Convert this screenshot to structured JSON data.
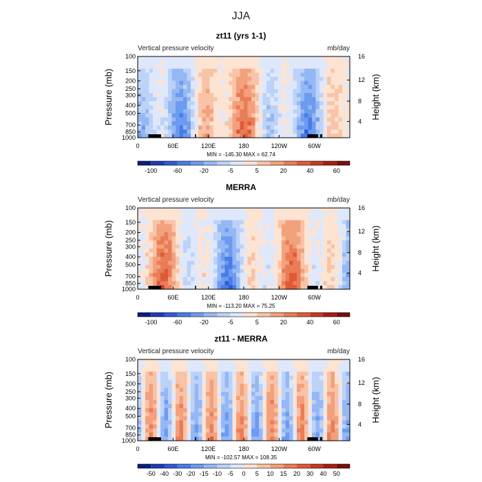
{
  "figure": {
    "title": "JJA",
    "panels": [
      {
        "title": "zt11 (yrs 1-1)",
        "left_label": "Vertical pressure velocity",
        "right_label": "mb/day",
        "stats": "MIN = -145.30   MAX =  62.74",
        "colorbar": "cb_full",
        "seed": 11
      },
      {
        "title": "MERRA",
        "left_label": "Vertical pressure velocity",
        "right_label": "mb/day",
        "stats": "MIN = -113.20   MAX =  75.25",
        "colorbar": "cb_full",
        "seed": 23
      },
      {
        "title": "zt11 - MERRA",
        "left_label": "Vertical pressure velocity",
        "right_label": "mb/day",
        "stats": "MIN = -102.57   MAX = 108.35",
        "colorbar": "cb_diff",
        "seed": 37
      }
    ],
    "ylabel_left": "Pressure (mb)",
    "ylabel_right": "Height (km)"
  },
  "colorbars": {
    "cb_full": {
      "colors": [
        "#0a1e82",
        "#1f3bb3",
        "#2f5ad6",
        "#4a7be8",
        "#6c9bf0",
        "#95b8f5",
        "#bcd2f8",
        "#dfe8fb",
        "#fde3d2",
        "#f8c3a6",
        "#f3a07c",
        "#ea7c57",
        "#de5a37",
        "#c9381f",
        "#a51f14",
        "#7a0e0c"
      ],
      "labels": [
        "-100",
        "-60",
        "-20",
        "-5",
        "5",
        "20",
        "40",
        "60"
      ]
    },
    "cb_diff": {
      "colors": [
        "#0a1e82",
        "#1f3bb3",
        "#2f5ad6",
        "#4a7be8",
        "#6c9bf0",
        "#95b8f5",
        "#bcd2f8",
        "#dfe8fb",
        "#fde3d2",
        "#f8c3a6",
        "#f3a07c",
        "#ea7c57",
        "#de5a37",
        "#c9381f",
        "#a51f14",
        "#7a0e0c"
      ],
      "labels": [
        "-50",
        "-40",
        "-30",
        "-20",
        "-15",
        "-10",
        "-5",
        "0",
        "5",
        "10",
        "15",
        "20",
        "30",
        "40",
        "50"
      ]
    }
  },
  "chart_data": [
    {
      "type": "heatmap",
      "title": "zt11 (yrs 1-1)",
      "xlabel": "",
      "ylabel": "Pressure (mb)",
      "x_ticks": [
        "0",
        "60E",
        "120E",
        "180",
        "120W",
        "60W"
      ],
      "y_ticks": [
        "100",
        "150",
        "200",
        "250",
        "300",
        "400",
        "500",
        "700",
        "850",
        "1000"
      ],
      "y2_ticks": [
        "16",
        "12",
        "8",
        "4"
      ],
      "y2label": "Height (km)",
      "units": "mb/day",
      "min": -145.3,
      "max": 62.74
    },
    {
      "type": "heatmap",
      "title": "MERRA",
      "xlabel": "",
      "ylabel": "Pressure (mb)",
      "x_ticks": [
        "0",
        "60E",
        "120E",
        "180",
        "120W",
        "60W"
      ],
      "y_ticks": [
        "100",
        "150",
        "200",
        "250",
        "300",
        "400",
        "500",
        "700",
        "850",
        "1000"
      ],
      "y2_ticks": [
        "16",
        "12",
        "8",
        "4"
      ],
      "y2label": "Height (km)",
      "units": "mb/day",
      "min": -113.2,
      "max": 75.25
    },
    {
      "type": "heatmap",
      "title": "zt11 - MERRA",
      "xlabel": "",
      "ylabel": "Pressure (mb)",
      "x_ticks": [
        "0",
        "60E",
        "120E",
        "180",
        "120W",
        "60W"
      ],
      "y_ticks": [
        "100",
        "150",
        "200",
        "250",
        "300",
        "400",
        "500",
        "700",
        "850",
        "1000"
      ],
      "y2_ticks": [
        "16",
        "12",
        "8",
        "4"
      ],
      "y2label": "Height (km)",
      "units": "mb/day",
      "min": -102.57,
      "max": 108.35
    }
  ]
}
